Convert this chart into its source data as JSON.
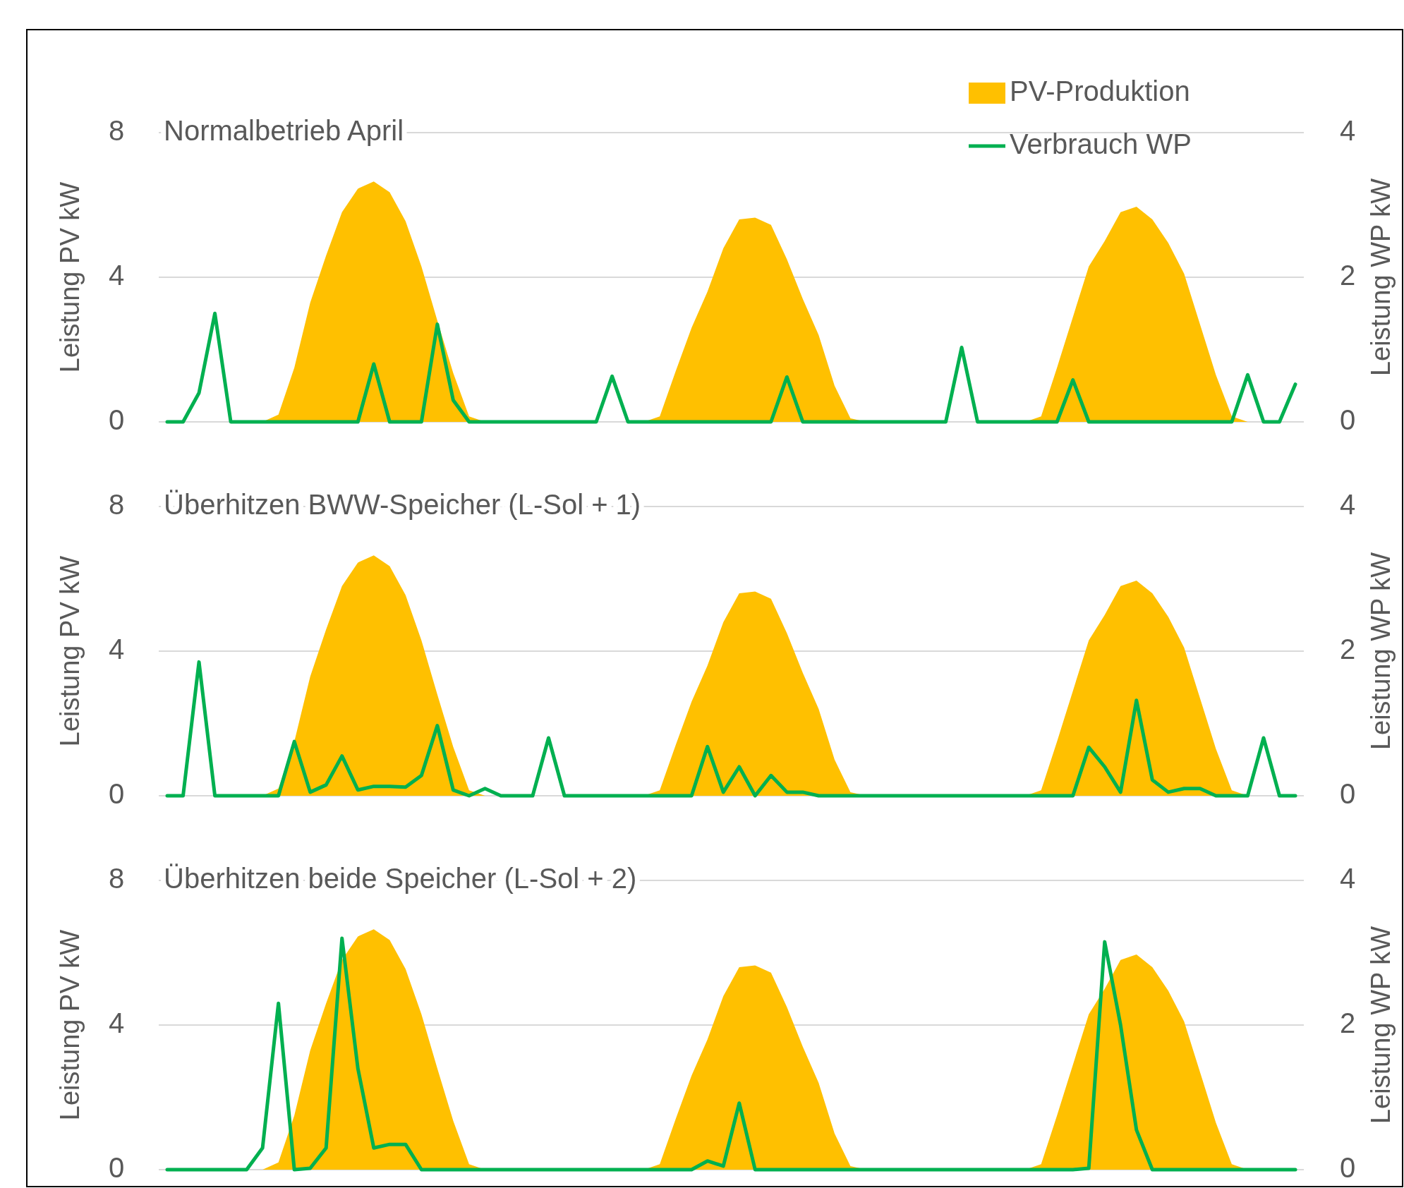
{
  "chart_data": [
    {
      "type": "area",
      "title": "Normalbetrieb April",
      "ylabel": "Leistung PV kW",
      "y2label": "Leistung WP kW",
      "categories": [
        null,
        null,
        null,
        null,
        null,
        null,
        null,
        null,
        null,
        null,
        null,
        null,
        null,
        null,
        null,
        null,
        null,
        null,
        null,
        null,
        null,
        null,
        null,
        null,
        null,
        null,
        null,
        null,
        null,
        null,
        null,
        null,
        null,
        null,
        null,
        null,
        null,
        null,
        null,
        null,
        null,
        null,
        null,
        null,
        null,
        null,
        null,
        null,
        null,
        null,
        null,
        null,
        null,
        null,
        null,
        null,
        null,
        null,
        null,
        null,
        null,
        null,
        null,
        null,
        null,
        null,
        null,
        null,
        null,
        null,
        null,
        null
      ],
      "ylim": [
        0,
        8
      ],
      "yticks": [
        0,
        4,
        8
      ],
      "y2lim": [
        0,
        4
      ],
      "y2ticks": [
        0,
        2,
        4
      ],
      "grid": "y",
      "legend": "top right",
      "series": [
        {
          "name": "PV-Produktion",
          "color": "#ffc000",
          "values": [
            0,
            0,
            0,
            0,
            0,
            0,
            0,
            0.2,
            1.5,
            3.3,
            4.6,
            5.8,
            6.45,
            6.65,
            6.35,
            5.55,
            4.3,
            2.8,
            1.35,
            0.15,
            0,
            0,
            0,
            0,
            0,
            0,
            0,
            0,
            0,
            0,
            0,
            0.15,
            1.4,
            2.6,
            3.6,
            4.8,
            5.6,
            5.65,
            5.45,
            4.5,
            3.4,
            2.4,
            1.0,
            0.1,
            0,
            0,
            0,
            0,
            0,
            0,
            0,
            0,
            0,
            0,
            0,
            0.15,
            1.5,
            2.9,
            4.3,
            5.0,
            5.8,
            5.95,
            5.6,
            4.95,
            4.1,
            2.7,
            1.3,
            0.15,
            0,
            0,
            0,
            0
          ]
        },
        {
          "name": "Verbrauch WP",
          "type": "line",
          "axis": "y2",
          "color": "#00b050",
          "values": [
            0,
            0,
            0.4,
            1.5,
            0,
            0,
            0,
            0,
            0,
            0,
            0,
            0,
            0,
            0.8,
            0,
            0,
            0,
            1.35,
            0.3,
            0,
            0,
            0,
            0,
            0,
            0,
            0,
            0,
            0,
            0.63,
            0,
            0,
            0,
            0,
            0,
            0,
            0,
            0,
            0,
            0,
            0.62,
            0,
            0,
            0,
            0,
            0,
            0,
            0,
            0,
            0,
            0,
            1.03,
            0,
            0,
            0,
            0,
            0,
            0,
            0.58,
            0,
            0,
            0,
            0,
            0,
            0,
            0,
            0,
            0,
            0,
            0.65,
            0,
            0,
            0.52
          ]
        }
      ]
    },
    {
      "type": "area",
      "title": "Überhitzen BWW-Speicher (L-Sol + 1)",
      "ylabel": "Leistung PV kW",
      "y2label": "Leistung WP kW",
      "categories": [
        null,
        null,
        null,
        null,
        null,
        null,
        null,
        null,
        null,
        null,
        null,
        null,
        null,
        null,
        null,
        null,
        null,
        null,
        null,
        null,
        null,
        null,
        null,
        null,
        null,
        null,
        null,
        null,
        null,
        null,
        null,
        null,
        null,
        null,
        null,
        null,
        null,
        null,
        null,
        null,
        null,
        null,
        null,
        null,
        null,
        null,
        null,
        null,
        null,
        null,
        null,
        null,
        null,
        null,
        null,
        null,
        null,
        null,
        null,
        null,
        null,
        null,
        null,
        null,
        null,
        null,
        null,
        null,
        null,
        null,
        null,
        null
      ],
      "ylim": [
        0,
        8
      ],
      "yticks": [
        0,
        4,
        8
      ],
      "y2lim": [
        0,
        4
      ],
      "y2ticks": [
        0,
        2,
        4
      ],
      "grid": "y",
      "series": [
        {
          "color": "#ffc000",
          "values": [
            0,
            0,
            0,
            0,
            0,
            0,
            0,
            0.2,
            1.5,
            3.3,
            4.6,
            5.8,
            6.45,
            6.65,
            6.35,
            5.55,
            4.3,
            2.8,
            1.35,
            0.15,
            0,
            0,
            0,
            0,
            0,
            0,
            0,
            0,
            0,
            0,
            0,
            0.15,
            1.4,
            2.6,
            3.6,
            4.8,
            5.6,
            5.65,
            5.45,
            4.5,
            3.4,
            2.4,
            1.0,
            0.1,
            0,
            0,
            0,
            0,
            0,
            0,
            0,
            0,
            0,
            0,
            0,
            0.15,
            1.5,
            2.9,
            4.3,
            5.0,
            5.8,
            5.95,
            5.6,
            4.95,
            4.1,
            2.7,
            1.3,
            0.15,
            0,
            0,
            0,
            0
          ]
        },
        {
          "type": "line",
          "axis": "y2",
          "color": "#00b050",
          "values": [
            0,
            0,
            1.85,
            0,
            0,
            0,
            0,
            0,
            0.75,
            0.05,
            0.15,
            0.55,
            0.08,
            0.13,
            0.13,
            0.12,
            0.28,
            0.97,
            0.08,
            0,
            0.1,
            0,
            0,
            0,
            0.8,
            0,
            0,
            0,
            0,
            0,
            0,
            0,
            0,
            0,
            0.68,
            0.05,
            0.4,
            0,
            0.28,
            0.05,
            0.05,
            0,
            0,
            0,
            0,
            0,
            0,
            0,
            0,
            0,
            0,
            0,
            0,
            0,
            0,
            0,
            0,
            0,
            0.67,
            0.4,
            0.05,
            1.32,
            0.22,
            0.05,
            0.1,
            0.1,
            0,
            0,
            0,
            0.8,
            0,
            0
          ]
        }
      ]
    },
    {
      "type": "area",
      "title": "Überhitzen beide Speicher (L-Sol + 2)",
      "ylabel": "Leistung PV kW",
      "y2label": "Leistung WP kW",
      "categories": [
        null,
        null,
        null,
        null,
        null,
        null,
        null,
        null,
        null,
        null,
        null,
        null,
        null,
        null,
        null,
        null,
        null,
        null,
        null,
        null,
        null,
        null,
        null,
        null,
        null,
        null,
        null,
        null,
        null,
        null,
        null,
        null,
        null,
        null,
        null,
        null,
        null,
        null,
        null,
        null,
        null,
        null,
        null,
        null,
        null,
        null,
        null,
        null,
        null,
        null,
        null,
        null,
        null,
        null,
        null,
        null,
        null,
        null,
        null,
        null,
        null,
        null,
        null,
        null,
        null,
        null,
        null,
        null,
        null,
        null,
        null,
        null
      ],
      "ylim": [
        0,
        8
      ],
      "yticks": [
        0,
        4,
        8
      ],
      "y2lim": [
        0,
        4
      ],
      "y2ticks": [
        0,
        2,
        4
      ],
      "grid": "y",
      "series": [
        {
          "color": "#ffc000",
          "values": [
            0,
            0,
            0,
            0,
            0,
            0,
            0,
            0.2,
            1.5,
            3.3,
            4.6,
            5.8,
            6.45,
            6.65,
            6.35,
            5.55,
            4.3,
            2.8,
            1.35,
            0.15,
            0,
            0,
            0,
            0,
            0,
            0,
            0,
            0,
            0,
            0,
            0,
            0.15,
            1.4,
            2.6,
            3.6,
            4.8,
            5.6,
            5.65,
            5.45,
            4.5,
            3.4,
            2.4,
            1.0,
            0.1,
            0,
            0,
            0,
            0,
            0,
            0,
            0,
            0,
            0,
            0,
            0,
            0.15,
            1.5,
            2.9,
            4.3,
            5.0,
            5.8,
            5.95,
            5.6,
            4.95,
            4.1,
            2.7,
            1.3,
            0.15,
            0,
            0,
            0,
            0
          ]
        },
        {
          "type": "line",
          "axis": "y2",
          "color": "#00b050",
          "values": [
            0,
            0,
            0,
            0,
            0,
            0,
            0.3,
            2.3,
            0,
            0.02,
            0.3,
            3.2,
            1.4,
            0.3,
            0.35,
            0.35,
            0,
            0,
            0,
            0,
            0,
            0,
            0,
            0,
            0,
            0,
            0,
            0,
            0,
            0,
            0,
            0,
            0,
            0,
            0.12,
            0.05,
            0.92,
            0,
            0,
            0,
            0,
            0,
            0,
            0,
            0,
            0,
            0,
            0,
            0,
            0,
            0,
            0,
            0,
            0,
            0,
            0,
            0,
            0,
            0.02,
            3.15,
            2.0,
            0.55,
            0,
            0,
            0,
            0,
            0,
            0,
            0,
            0,
            0,
            0
          ]
        }
      ]
    }
  ]
}
